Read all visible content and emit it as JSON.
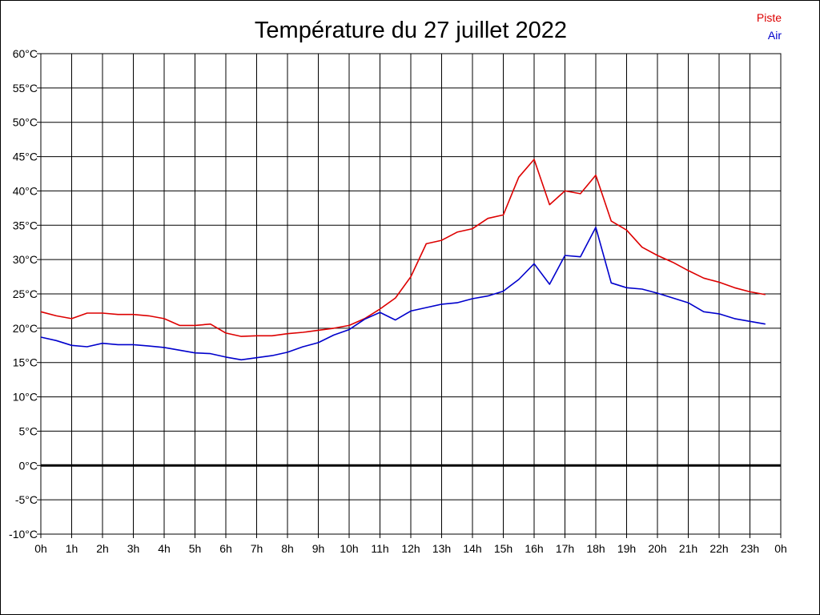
{
  "chart_data": {
    "type": "line",
    "title": "Température du 27 juillet 2022",
    "xlabel": "",
    "ylabel": "",
    "ylim": [
      -10,
      60
    ],
    "x_ticks": [
      "0h",
      "1h",
      "2h",
      "3h",
      "4h",
      "5h",
      "6h",
      "7h",
      "8h",
      "9h",
      "10h",
      "11h",
      "12h",
      "13h",
      "14h",
      "15h",
      "16h",
      "17h",
      "18h",
      "19h",
      "20h",
      "21h",
      "22h",
      "23h",
      "0h"
    ],
    "y_ticks": [
      "-10°C",
      "-5°C",
      "0°C",
      "5°C",
      "10°C",
      "15°C",
      "20°C",
      "25°C",
      "30°C",
      "35°C",
      "40°C",
      "45°C",
      "50°C",
      "55°C",
      "60°C"
    ],
    "grid": true,
    "zero_line": true,
    "legend_position": "top-right",
    "x_unit": "hour",
    "series": [
      {
        "name": "Piste",
        "color": "#dd0000",
        "x": [
          0,
          0.5,
          1,
          1.5,
          2,
          2.5,
          3,
          3.5,
          4,
          4.5,
          5,
          5.5,
          6,
          6.5,
          7,
          7.5,
          8,
          8.5,
          9,
          9.5,
          10,
          10.5,
          11,
          11.5,
          12,
          12.5,
          13,
          13.5,
          14,
          14.5,
          15,
          15.5,
          16,
          16.5,
          17,
          17.5,
          18,
          18.5,
          19,
          19.5,
          20,
          20.5,
          21,
          21.5,
          22,
          22.5,
          23,
          23.5
        ],
        "values": [
          22.4,
          21.8,
          21.4,
          22.2,
          22.2,
          22.0,
          22.0,
          21.8,
          21.4,
          20.4,
          20.4,
          20.6,
          19.3,
          18.8,
          18.9,
          18.9,
          19.2,
          19.4,
          19.7,
          20.0,
          20.4,
          21.4,
          22.8,
          24.4,
          27.5,
          32.3,
          32.8,
          34.0,
          34.5,
          36.0,
          36.5,
          42.0,
          44.6,
          38.0,
          40.0,
          39.6,
          42.3,
          35.6,
          34.3,
          31.8,
          30.6,
          29.6,
          28.4,
          27.3,
          26.7,
          25.9,
          25.3,
          24.9
        ]
      },
      {
        "name": "Air",
        "color": "#0000cc",
        "x": [
          0,
          0.5,
          1,
          1.5,
          2,
          2.5,
          3,
          3.5,
          4,
          4.5,
          5,
          5.5,
          6,
          6.5,
          7,
          7.5,
          8,
          8.5,
          9,
          9.5,
          10,
          10.5,
          11,
          11.5,
          12,
          12.5,
          13,
          13.5,
          14,
          14.5,
          15,
          15.5,
          16,
          16.5,
          17,
          17.5,
          18,
          18.5,
          19,
          19.5,
          20,
          20.5,
          21,
          21.5,
          22,
          22.5,
          23,
          23.5
        ],
        "values": [
          18.7,
          18.2,
          17.5,
          17.3,
          17.8,
          17.6,
          17.6,
          17.4,
          17.2,
          16.8,
          16.4,
          16.3,
          15.8,
          15.4,
          15.7,
          16.0,
          16.5,
          17.3,
          17.9,
          19.0,
          19.8,
          21.3,
          22.3,
          21.2,
          22.5,
          23.0,
          23.5,
          23.7,
          24.3,
          24.7,
          25.4,
          27.1,
          29.4,
          26.4,
          30.6,
          30.4,
          34.7,
          26.6,
          25.9,
          25.7,
          25.1,
          24.4,
          23.7,
          22.4,
          22.1,
          21.4,
          21.0,
          20.6
        ]
      }
    ]
  }
}
